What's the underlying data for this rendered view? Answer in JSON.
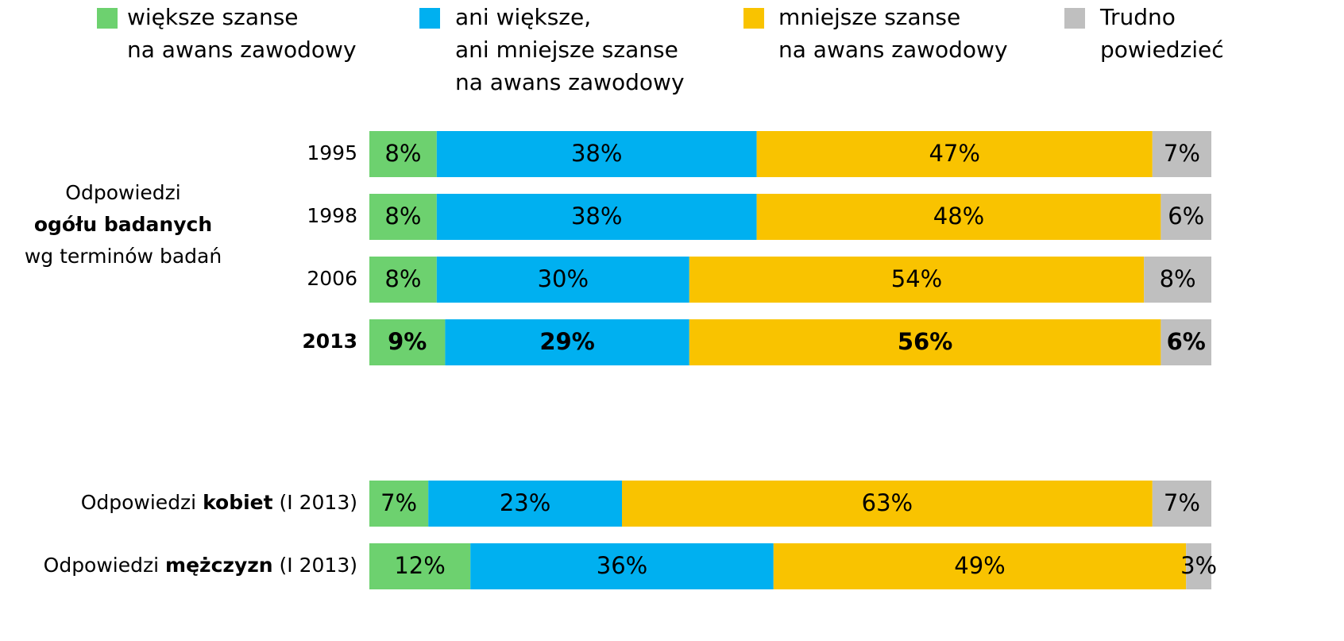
{
  "chart_data": {
    "type": "stacked_barh",
    "xlim": [
      0,
      100
    ],
    "categories": [
      [
        {
          "text": "1995"
        }
      ],
      [
        {
          "text": "1998"
        }
      ],
      [
        {
          "text": "2006"
        }
      ],
      [
        {
          "text": "2013",
          "bold": true
        }
      ],
      [
        {
          "text": "Odpowiedzi "
        },
        {
          "text": "kobiet",
          "bold": true
        },
        {
          "text": " (I 2013)"
        }
      ],
      [
        {
          "text": "Odpowiedzi "
        },
        {
          "text": "mężczyzn",
          "bold": true
        },
        {
          "text": " (I 2013)"
        }
      ]
    ],
    "bold_rows": [
      3
    ],
    "group_label": [
      {
        "text": "Odpowiedzi"
      },
      {
        "text": "ogółu badanych",
        "bold": true
      },
      {
        "text": "wg terminów badań"
      }
    ],
    "series": [
      {
        "name": [
          "większe szanse",
          "na awans zawodowy"
        ],
        "color": "#6dd16f",
        "values": [
          8,
          8,
          8,
          9,
          7,
          12
        ],
        "value_labels": [
          "8%",
          "8%",
          "8%",
          "9%",
          "7%",
          "12%"
        ]
      },
      {
        "name": [
          "ani większe,",
          "ani mniejsze szanse",
          "na awans zawodowy"
        ],
        "color": "#00b0f0",
        "values": [
          38,
          38,
          30,
          29,
          23,
          36
        ],
        "value_labels": [
          "38%",
          "38%",
          "30%",
          "29%",
          "23%",
          "36%"
        ]
      },
      {
        "name": [
          "mniejsze szanse",
          "na awans zawodowy"
        ],
        "color": "#f9c300",
        "values": [
          47,
          48,
          54,
          56,
          63,
          49
        ],
        "value_labels": [
          "47%",
          "48%",
          "54%",
          "56%",
          "63%",
          "49%"
        ]
      },
      {
        "name": [
          "Trudno",
          "powiedzieć"
        ],
        "color": "#bfbfbf",
        "values": [
          7,
          6,
          8,
          6,
          7,
          3
        ],
        "value_labels": [
          "7%",
          "6%",
          "8%",
          "6%",
          "7%",
          "3%"
        ]
      }
    ]
  }
}
